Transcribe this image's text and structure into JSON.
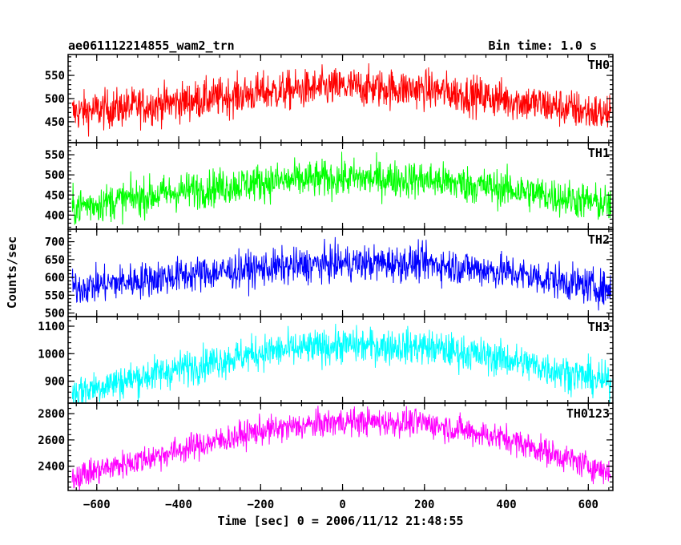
{
  "chart_data": {
    "type": "line",
    "title": "ae061112214855_wam2_trn",
    "subtitle": "Bin time: 1.0 s",
    "xlabel": "Time [sec] 0 = 2006/11/12 21:48:55",
    "ylabel": "Counts/sec",
    "xlim": [
      -670,
      660
    ],
    "x_ticks": [
      -600,
      -400,
      -200,
      0,
      200,
      400,
      600
    ],
    "x_tick_labels": [
      "−600",
      "−400",
      "−200",
      "0",
      "200",
      "400",
      "600"
    ],
    "legend": "none",
    "grid": false,
    "panels": [
      {
        "name": "TH0",
        "color": "#ff0000",
        "ylim": [
          405,
          595
        ],
        "y_ticks": [
          450,
          500,
          550
        ],
        "y_tick_labels": [
          "450",
          "500",
          "550"
        ],
        "profile": {
          "x": [
            -660,
            -400,
            -200,
            0,
            200,
            400,
            655
          ],
          "y": [
            470,
            492,
            513,
            525,
            520,
            498,
            465
          ]
        },
        "noise_amplitude": 38
      },
      {
        "name": "TH1",
        "color": "#00ff00",
        "ylim": [
          365,
          580
        ],
        "y_ticks": [
          400,
          450,
          500,
          550
        ],
        "y_tick_labels": [
          "400",
          "450",
          "500",
          "550"
        ],
        "profile": {
          "x": [
            -660,
            -400,
            -200,
            0,
            200,
            400,
            655
          ],
          "y": [
            420,
            458,
            482,
            492,
            488,
            465,
            425
          ]
        },
        "noise_amplitude": 42
      },
      {
        "name": "TH2",
        "color": "#0000ff",
        "ylim": [
          490,
          735
        ],
        "y_ticks": [
          500,
          550,
          600,
          650,
          700
        ],
        "y_tick_labels": [
          "500",
          "550",
          "600",
          "650",
          "700"
        ],
        "profile": {
          "x": [
            -660,
            -400,
            -200,
            0,
            200,
            400,
            655
          ],
          "y": [
            570,
            605,
            625,
            640,
            640,
            615,
            565
          ]
        },
        "noise_amplitude": 45
      },
      {
        "name": "TH3",
        "color": "#00ffff",
        "ylim": [
          820,
          1135
        ],
        "y_ticks": [
          900,
          1000,
          1100
        ],
        "y_tick_labels": [
          "900",
          "1000",
          "1100"
        ],
        "profile": {
          "x": [
            -660,
            -400,
            -200,
            0,
            200,
            400,
            655
          ],
          "y": [
            860,
            945,
            1005,
            1030,
            1025,
            980,
            895
          ]
        },
        "noise_amplitude": 58
      },
      {
        "name": "TH0123",
        "color": "#ff00ff",
        "ylim": [
          2215,
          2880
        ],
        "y_ticks": [
          2400,
          2600,
          2800
        ],
        "y_tick_labels": [
          "2400",
          "2600",
          "2800"
        ],
        "profile": {
          "x": [
            -660,
            -400,
            -200,
            0,
            200,
            400,
            655
          ],
          "y": [
            2320,
            2520,
            2670,
            2740,
            2730,
            2610,
            2350
          ]
        },
        "noise_amplitude": 95
      }
    ]
  }
}
